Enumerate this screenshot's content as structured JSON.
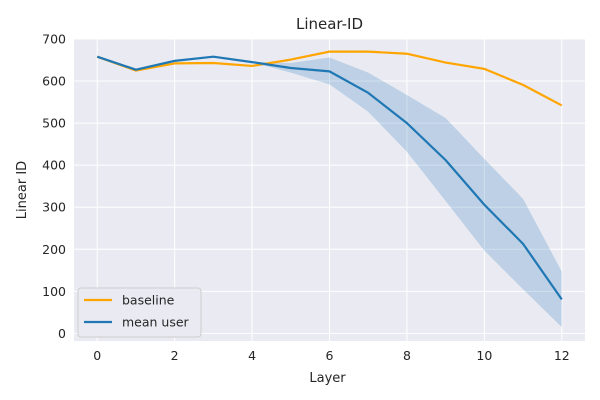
{
  "chart_data": {
    "type": "line",
    "title": "Linear-ID",
    "xlabel": "Layer",
    "ylabel": "Linear ID",
    "xlim": [
      -0.6,
      12.6
    ],
    "ylim": [
      -18,
      700
    ],
    "xticks": [
      0,
      2,
      4,
      6,
      8,
      10,
      12
    ],
    "yticks": [
      0,
      100,
      200,
      300,
      400,
      500,
      600,
      700
    ],
    "grid": true,
    "legend_position": "lower-left",
    "x": [
      0,
      1,
      2,
      3,
      4,
      5,
      6,
      7,
      8,
      9,
      10,
      11,
      12
    ],
    "series": [
      {
        "name": "baseline",
        "color": "#ffa500",
        "values": [
          658,
          625,
          642,
          643,
          636,
          651,
          670,
          670,
          665,
          644,
          629,
          591,
          542
        ]
      },
      {
        "name": "mean user",
        "color": "#1f77b4",
        "values": [
          658,
          627,
          648,
          658,
          645,
          631,
          623,
          572,
          500,
          412,
          306,
          213,
          81
        ],
        "band_lower": [
          658,
          627,
          648,
          658,
          645,
          620,
          592,
          527,
          432,
          315,
          197,
          105,
          15
        ],
        "band_upper": [
          658,
          627,
          648,
          658,
          645,
          643,
          656,
          620,
          567,
          512,
          415,
          320,
          147
        ],
        "band_color": "#1f77b4"
      }
    ]
  }
}
